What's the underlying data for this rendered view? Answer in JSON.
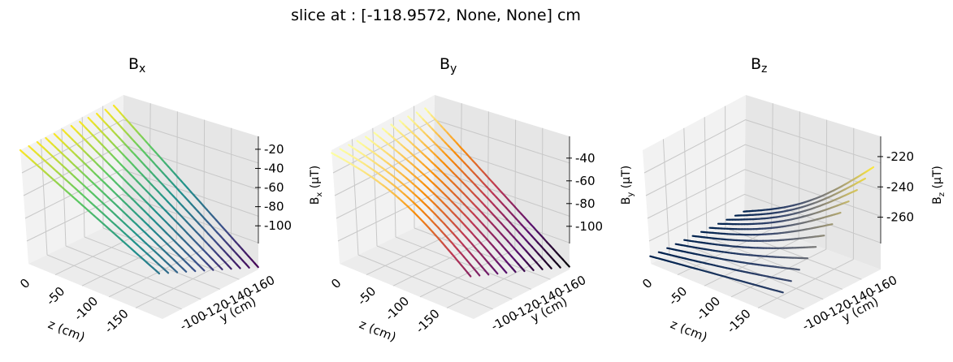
{
  "figure": {
    "title": "slice at : [-118.9572, None, None] cm"
  },
  "chart_data": [
    {
      "type": "surface",
      "title": "B_x",
      "title_main": "B",
      "title_sub": "x",
      "colormap": "viridis",
      "colors": [
        "#440154",
        "#3b528b",
        "#21918c",
        "#5ec962",
        "#fde725"
      ],
      "xaxis": {
        "label": "z (cm)",
        "ticks": [
          "0",
          "-50",
          "-100",
          "-150"
        ],
        "range": [
          -180,
          10
        ]
      },
      "yaxis": {
        "label": "y (cm)",
        "ticks": [
          "-100",
          "-120",
          "-140",
          "-160"
        ],
        "range": [
          -170,
          -90
        ]
      },
      "zaxis": {
        "label": "B_x (μT)",
        "label_main": "B",
        "label_sub": "x",
        "label_unit": " (μT)",
        "ticks": [
          "-20",
          "-40",
          "-60",
          "-80",
          "-100"
        ],
        "range": [
          -110,
          -15
        ]
      },
      "surface_corners": {
        "z0_ymin": -15,
        "z0_ymax": -15,
        "zmin_ymin": -72,
        "zmin_ymax": -108
      },
      "value_range": [
        -108,
        -15
      ]
    },
    {
      "type": "surface",
      "title": "B_y",
      "title_main": "B",
      "title_sub": "y",
      "colormap": "inferno",
      "colors": [
        "#000004",
        "#57106e",
        "#bc3754",
        "#f98e09",
        "#fcffa4"
      ],
      "xaxis": {
        "label": "z (cm)",
        "ticks": [
          "0",
          "-50",
          "-100",
          "-150"
        ],
        "range": [
          -180,
          10
        ]
      },
      "yaxis": {
        "label": "y (cm)",
        "ticks": [
          "-100",
          "-120",
          "-140",
          "-160"
        ],
        "range": [
          -170,
          -90
        ]
      },
      "zaxis": {
        "label": "B_y (μT)",
        "label_main": "B",
        "label_sub": "y",
        "label_unit": " (μT)",
        "ticks": [
          "-40",
          "-60",
          "-80",
          "-100"
        ],
        "range": [
          -108,
          -28
        ]
      },
      "surface_corners": {
        "z0_ymin": -30,
        "z0_ymax": -30,
        "zmin_ymin": -78,
        "zmin_ymax": -106
      },
      "value_range": [
        -106,
        -30
      ]
    },
    {
      "type": "surface",
      "title": "B_z",
      "title_main": "B",
      "title_sub": "z",
      "colormap": "cividis",
      "colors": [
        "#00224e",
        "#35456c",
        "#7d7c78",
        "#bcaf6f",
        "#fee838"
      ],
      "xaxis": {
        "label": "z (cm)",
        "ticks": [
          "0",
          "-50",
          "-100",
          "-150"
        ],
        "range": [
          -180,
          10
        ]
      },
      "yaxis": {
        "label": "y (cm)",
        "ticks": [
          "-100",
          "-120",
          "-140",
          "-160"
        ],
        "range": [
          -170,
          -90
        ]
      },
      "zaxis": {
        "label": "B_z (μT)",
        "label_main": "B",
        "label_sub": "z",
        "label_unit": " (μT)",
        "ticks": [
          "-220",
          "-240",
          "-260"
        ],
        "range": [
          -272,
          -212
        ]
      },
      "surface_corners": {
        "z0_ymin": -268,
        "z0_ymax": -268,
        "zmin_ymin": -258,
        "zmin_ymax": -218
      },
      "value_range": [
        -268,
        -218
      ]
    }
  ]
}
